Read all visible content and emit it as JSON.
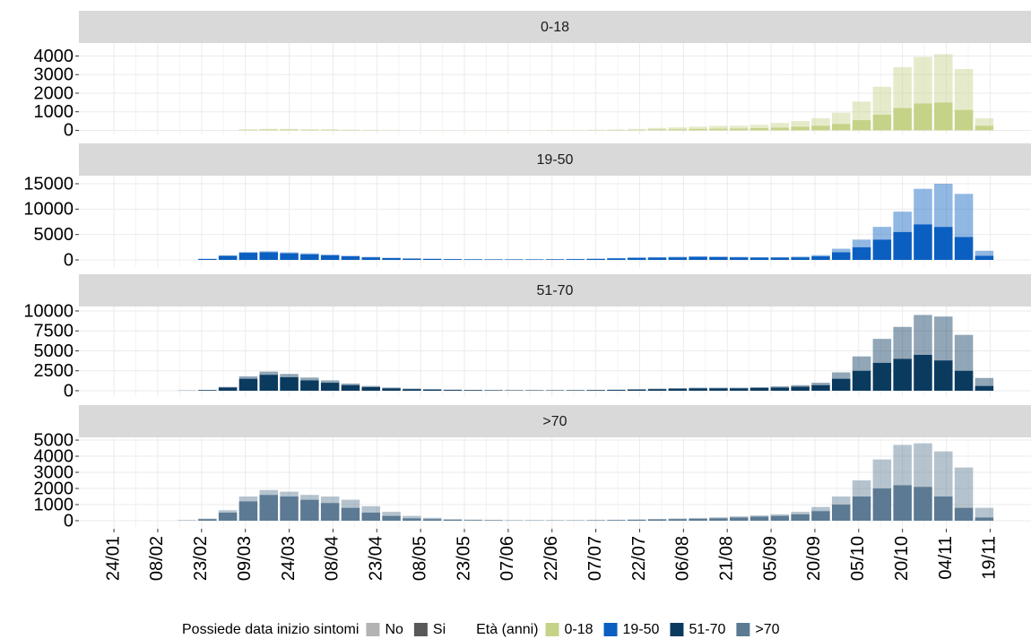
{
  "legend": {
    "fill_title": "Possiede data inizio sintomi",
    "color_title": "Età (anni)"
  },
  "chart_data": [
    {
      "type": "bar",
      "stacked": true,
      "title": "0-18",
      "color": "#c5d389",
      "x": [
        42,
        49,
        56,
        63,
        70,
        77,
        84,
        91,
        98,
        105,
        112,
        119,
        126,
        133,
        140,
        147,
        154,
        161,
        168,
        175,
        182,
        189,
        196,
        203,
        210,
        217,
        224,
        231,
        238,
        245,
        252,
        259,
        266,
        273,
        280,
        287,
        294,
        301,
        308,
        315,
        322
      ],
      "xlim": [
        12,
        338
      ],
      "ylim": [
        -220,
        4700
      ],
      "yticks": [
        0,
        1000,
        2000,
        3000,
        4000
      ],
      "series": [
        {
          "name": "Si",
          "values": [
            0,
            0,
            0,
            0,
            30,
            40,
            40,
            30,
            30,
            20,
            15,
            10,
            5,
            5,
            5,
            5,
            5,
            5,
            5,
            10,
            10,
            15,
            20,
            30,
            50,
            60,
            80,
            90,
            100,
            120,
            150,
            200,
            250,
            350,
            550,
            850,
            1200,
            1450,
            1500,
            1100,
            250
          ]
        },
        {
          "name": "No",
          "values": [
            0,
            0,
            0,
            0,
            30,
            40,
            40,
            30,
            30,
            20,
            15,
            10,
            5,
            5,
            5,
            5,
            5,
            5,
            5,
            10,
            10,
            20,
            30,
            50,
            80,
            100,
            120,
            150,
            150,
            180,
            250,
            300,
            400,
            600,
            1000,
            1500,
            2200,
            2500,
            2600,
            2200,
            400
          ]
        }
      ]
    },
    {
      "type": "bar",
      "stacked": true,
      "title": "19-50",
      "color": "#0b5fc0",
      "x": [
        42,
        49,
        56,
        63,
        70,
        77,
        84,
        91,
        98,
        105,
        112,
        119,
        126,
        133,
        140,
        147,
        154,
        161,
        168,
        175,
        182,
        189,
        196,
        203,
        210,
        217,
        224,
        231,
        238,
        245,
        252,
        259,
        266,
        273,
        280,
        287,
        294,
        301,
        308,
        315,
        322
      ],
      "xlim": [
        12,
        338
      ],
      "ylim": [
        -1410,
        16590
      ],
      "yticks": [
        0,
        5000,
        10000,
        15000
      ],
      "series": [
        {
          "name": "Si",
          "values": [
            0,
            0,
            200,
            800,
            1400,
            1500,
            1300,
            1100,
            900,
            700,
            500,
            350,
            250,
            200,
            150,
            120,
            100,
            100,
            100,
            120,
            150,
            200,
            300,
            400,
            450,
            500,
            600,
            550,
            500,
            450,
            450,
            500,
            700,
            1500,
            2500,
            4000,
            5500,
            7000,
            6500,
            4500,
            800
          ]
        },
        {
          "name": "No",
          "values": [
            0,
            0,
            20,
            80,
            150,
            200,
            200,
            200,
            150,
            120,
            100,
            80,
            60,
            50,
            40,
            30,
            30,
            30,
            30,
            40,
            50,
            60,
            80,
            100,
            100,
            120,
            120,
            120,
            100,
            100,
            100,
            150,
            250,
            700,
            1500,
            2500,
            4000,
            7000,
            8500,
            8500,
            1000
          ]
        }
      ]
    },
    {
      "type": "bar",
      "stacked": true,
      "title": "51-70",
      "color": "#0b3a5f",
      "x": [
        42,
        49,
        56,
        63,
        70,
        77,
        84,
        91,
        98,
        105,
        112,
        119,
        126,
        133,
        140,
        147,
        154,
        161,
        168,
        175,
        182,
        189,
        196,
        203,
        210,
        217,
        224,
        231,
        238,
        245,
        252,
        259,
        266,
        273,
        280,
        287,
        294,
        301,
        308,
        315,
        322
      ],
      "xlim": [
        12,
        338
      ],
      "ylim": [
        -790,
        10560
      ],
      "yticks": [
        0,
        2500,
        5000,
        7500,
        10000
      ],
      "series": [
        {
          "name": "Si",
          "values": [
            0,
            20,
            80,
            400,
            1500,
            2000,
            1700,
            1300,
            1000,
            700,
            450,
            300,
            200,
            150,
            100,
            80,
            60,
            50,
            50,
            50,
            60,
            80,
            100,
            150,
            200,
            250,
            300,
            300,
            300,
            350,
            400,
            500,
            700,
            1500,
            2500,
            3500,
            4000,
            4500,
            3800,
            2500,
            600
          ]
        },
        {
          "name": "No",
          "values": [
            0,
            5,
            20,
            80,
            300,
            400,
            400,
            350,
            300,
            200,
            150,
            100,
            70,
            50,
            40,
            30,
            20,
            20,
            20,
            20,
            20,
            30,
            40,
            50,
            60,
            80,
            80,
            80,
            80,
            100,
            150,
            200,
            300,
            800,
            1800,
            3000,
            4000,
            5000,
            5500,
            4500,
            1000
          ]
        }
      ]
    },
    {
      "type": "bar",
      "stacked": true,
      "title": ">70",
      "color": "#5c7a93",
      "x": [
        42,
        49,
        56,
        63,
        70,
        77,
        84,
        91,
        98,
        105,
        112,
        119,
        126,
        133,
        140,
        147,
        154,
        161,
        168,
        175,
        182,
        189,
        196,
        203,
        210,
        217,
        224,
        231,
        238,
        245,
        252,
        259,
        266,
        273,
        280,
        287,
        294,
        301,
        308,
        315,
        322
      ],
      "xlim": [
        12,
        338
      ],
      "ylim": [
        -500,
        5170
      ],
      "yticks": [
        0,
        1000,
        2000,
        3000,
        4000,
        5000
      ],
      "xticks": [
        {
          "value": 24,
          "label": "24/01"
        },
        {
          "value": 39,
          "label": "08/02"
        },
        {
          "value": 54,
          "label": "23/02"
        },
        {
          "value": 69,
          "label": "09/03"
        },
        {
          "value": 84,
          "label": "24/03"
        },
        {
          "value": 99,
          "label": "08/04"
        },
        {
          "value": 114,
          "label": "23/04"
        },
        {
          "value": 129,
          "label": "08/05"
        },
        {
          "value": 144,
          "label": "23/05"
        },
        {
          "value": 159,
          "label": "07/06"
        },
        {
          "value": 174,
          "label": "22/06"
        },
        {
          "value": 189,
          "label": "07/07"
        },
        {
          "value": 204,
          "label": "22/07"
        },
        {
          "value": 219,
          "label": "06/08"
        },
        {
          "value": 234,
          "label": "21/08"
        },
        {
          "value": 249,
          "label": "05/09"
        },
        {
          "value": 264,
          "label": "20/09"
        },
        {
          "value": 279,
          "label": "05/10"
        },
        {
          "value": 294,
          "label": "20/10"
        },
        {
          "value": 309,
          "label": "04/11"
        },
        {
          "value": 324,
          "label": "19/11"
        }
      ],
      "series": [
        {
          "name": "Si",
          "values": [
            0,
            20,
            100,
            500,
            1200,
            1600,
            1500,
            1300,
            1100,
            800,
            500,
            300,
            150,
            100,
            60,
            40,
            30,
            20,
            20,
            20,
            20,
            30,
            40,
            60,
            80,
            100,
            120,
            150,
            200,
            250,
            300,
            400,
            600,
            1000,
            1500,
            2000,
            2200,
            2100,
            1500,
            800,
            200
          ]
        },
        {
          "name": "No",
          "values": [
            0,
            5,
            30,
            150,
            300,
            300,
            300,
            300,
            400,
            500,
            400,
            250,
            150,
            80,
            40,
            30,
            20,
            10,
            10,
            10,
            10,
            10,
            20,
            20,
            30,
            40,
            50,
            60,
            70,
            80,
            100,
            150,
            250,
            500,
            1000,
            1800,
            2500,
            2700,
            2800,
            2500,
            600
          ]
        }
      ]
    }
  ]
}
